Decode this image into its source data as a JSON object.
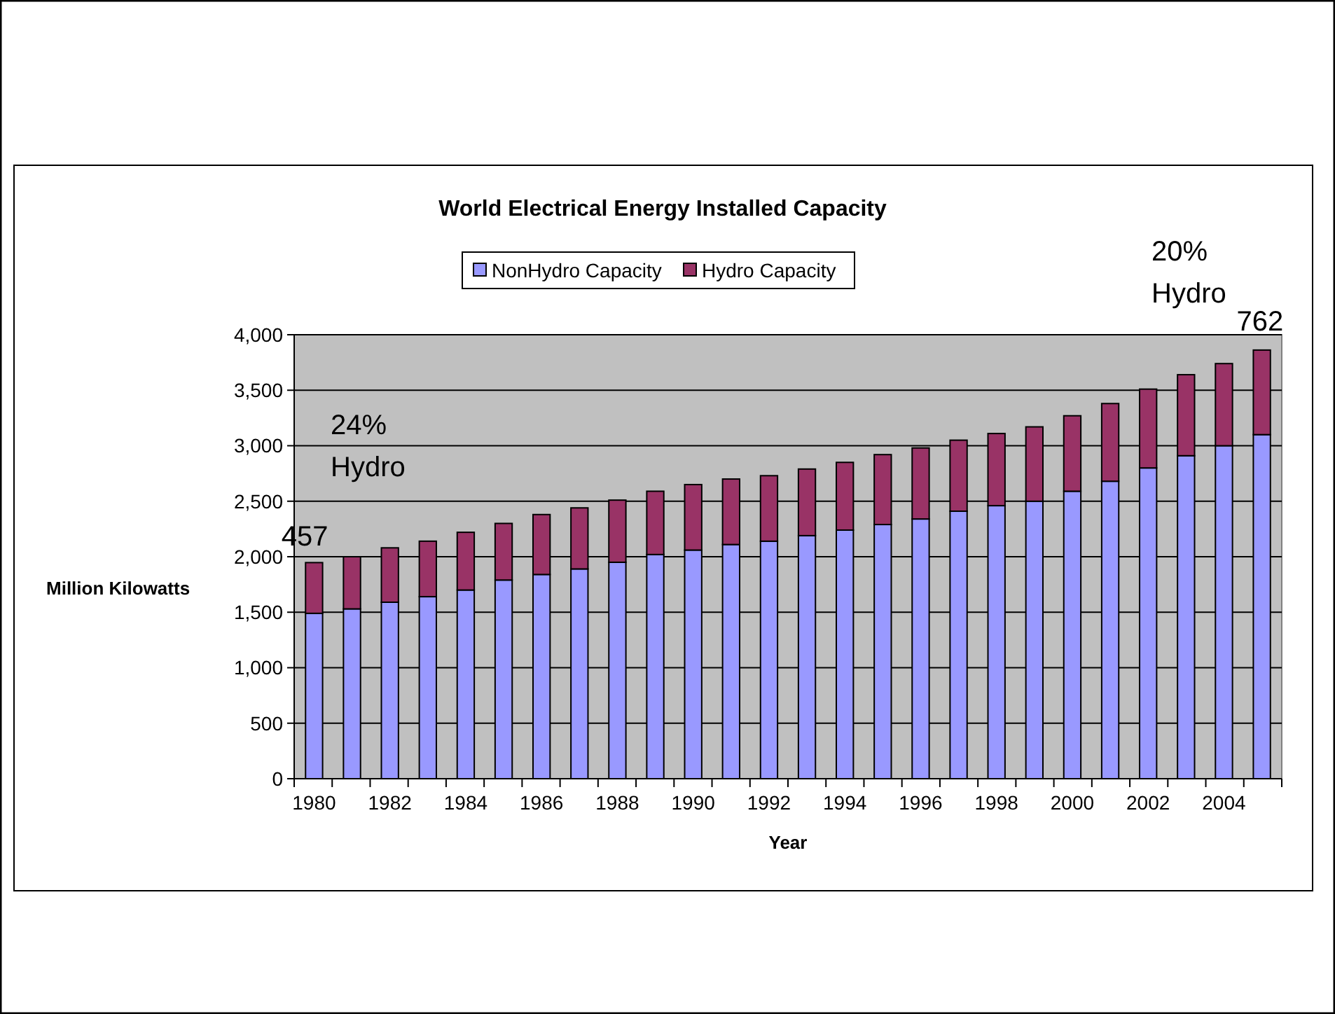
{
  "chart_data": {
    "type": "bar",
    "title": "World Electrical Energy Installed Capacity",
    "xlabel": "Year",
    "ylabel": "Million Kilowatts",
    "categories": [
      "1980",
      null,
      "1982",
      null,
      "1984",
      null,
      "1986",
      null,
      "1988",
      null,
      "1990",
      null,
      "1992",
      null,
      "1994",
      null,
      "1996",
      null,
      "1998",
      null,
      "2000",
      null,
      "2002",
      null,
      "2004",
      null
    ],
    "stacked": true,
    "series": [
      {
        "name": "NonHydro Capacity",
        "color": "#9999ff",
        "values": [
          1490,
          1530,
          1590,
          1640,
          1700,
          1790,
          1840,
          1890,
          1950,
          2020,
          2060,
          2110,
          2140,
          2190,
          2240,
          2290,
          2340,
          2410,
          2460,
          2500,
          2590,
          2680,
          2800,
          2910,
          3000,
          3100
        ]
      },
      {
        "name": "Hydro Capacity",
        "color": "#993366",
        "values": [
          457,
          470,
          490,
          500,
          520,
          510,
          540,
          550,
          560,
          570,
          590,
          590,
          590,
          600,
          610,
          630,
          640,
          640,
          650,
          670,
          680,
          700,
          710,
          730,
          740,
          762
        ],
        "value_labels": [
          "457",
          null,
          null,
          null,
          null,
          null,
          null,
          null,
          null,
          null,
          null,
          null,
          null,
          null,
          null,
          null,
          null,
          null,
          null,
          null,
          null,
          null,
          null,
          null,
          null,
          "762"
        ]
      }
    ],
    "annotations": [
      "24% Hydro",
      "20% Hydro"
    ],
    "ylim": [
      0,
      4000
    ],
    "yticks": [
      {
        "value": 0,
        "label": "0"
      },
      {
        "value": 500,
        "label": "500"
      },
      {
        "value": 1000,
        "label": "1,000"
      },
      {
        "value": 1500,
        "label": "1,500"
      },
      {
        "value": 2000,
        "label": "2,000"
      },
      {
        "value": 2500,
        "label": "2,500"
      },
      {
        "value": 3000,
        "label": "3,000"
      },
      {
        "value": 3500,
        "label": "3,500"
      },
      {
        "value": 4000,
        "label": "4,000"
      }
    ],
    "grid": "y",
    "legend": "top"
  }
}
